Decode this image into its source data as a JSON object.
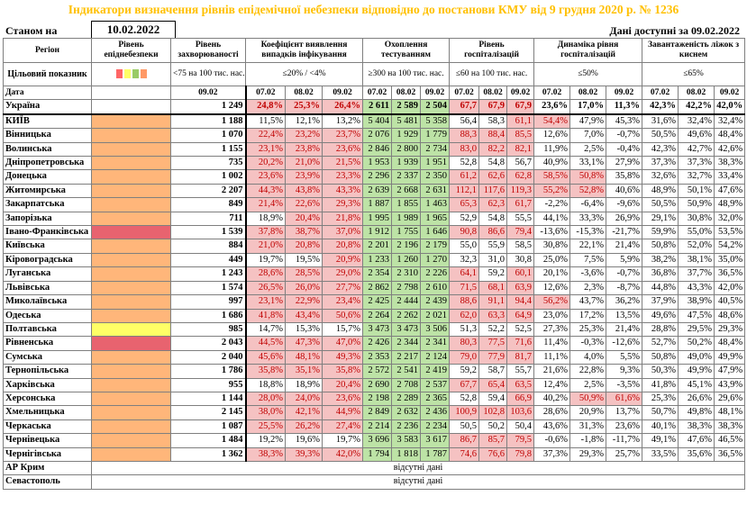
{
  "title": "Індикатори визначення рівнів епідемічної небезпеки відповідно до постанови КМУ від 9 грудня 2020 р. № 1236",
  "state_label": "Станом на",
  "state_date": "10.02.2022",
  "avail": "Дані доступні за  09.02.2022",
  "missing_text": "відсутні дані",
  "colors": {
    "orange": "#FFB67A",
    "red": "#E8636F",
    "yellow": "#FFFF66",
    "green": "#BDE3A6",
    "pink": "#F5C2C2",
    "title": "#FFC000"
  },
  "legend_squares": [
    "#FF6666",
    "#FFFF66",
    "#99CC66",
    "#FF9966"
  ],
  "headers": {
    "region": "Регіон",
    "indicator": "Цільовий показник",
    "date": "Дата",
    "level": "Рівень епіднебезпеки",
    "incidence": "Рівень захворюваності",
    "incidence_target": "<75 на 100 тис. нас.",
    "incidence_date": "09.02",
    "coef": "Коефіцієнт виявлення випадків інфікування",
    "coef_target": "≤20% / <4%",
    "tests": "Охоплення тестуванням",
    "tests_target": "≥300 на 100 тис. нас.",
    "hosp": "Рівень госпіталізацій",
    "hosp_target": "≤60 на 100 тис. нас.",
    "dyn": "Динаміка рівня госпіталізацій",
    "dyn_target": "≤50%",
    "beds": "Завантаженість ліжок з киснем",
    "beds_target": "≤65%",
    "dates": [
      "07.02",
      "08.02",
      "09.02"
    ]
  },
  "ukraine": {
    "name": "Україна",
    "inc": "1 249",
    "coef": [
      "24,8%",
      "25,3%",
      "26,4%"
    ],
    "tests": [
      "2 611",
      "2 589",
      "2 504"
    ],
    "hosp": [
      "67,7",
      "67,9",
      "67,9"
    ],
    "dyn": [
      "23,6%",
      "17,0%",
      "11,3%"
    ],
    "beds": [
      "42,3%",
      "42,2%",
      "42,0%"
    ]
  },
  "regions": [
    {
      "name": "КИЇВ",
      "level": "o",
      "inc": "1 188",
      "coef": [
        "11,5%",
        "12,1%",
        "13,2%"
      ],
      "tests": [
        "5 404",
        "5 481",
        "5 358"
      ],
      "hosp": [
        "56,4",
        "58,3",
        "61,1"
      ],
      "dyn": [
        "54,4%",
        "47,9%",
        "45,3%"
      ],
      "beds": [
        "31,6%",
        "32,4%",
        "32,4%"
      ]
    },
    {
      "name": "Вінницька",
      "level": "o",
      "inc": "1 070",
      "coef": [
        "22,4%",
        "23,2%",
        "23,7%"
      ],
      "tests": [
        "2 076",
        "1 929",
        "1 779"
      ],
      "hosp": [
        "88,3",
        "88,4",
        "85,5"
      ],
      "dyn": [
        "12,6%",
        "7,0%",
        "-0,7%"
      ],
      "beds": [
        "50,5%",
        "49,6%",
        "48,4%"
      ]
    },
    {
      "name": "Волинська",
      "level": "o",
      "inc": "1 155",
      "coef": [
        "23,1%",
        "23,8%",
        "23,6%"
      ],
      "tests": [
        "2 846",
        "2 800",
        "2 734"
      ],
      "hosp": [
        "83,0",
        "82,2",
        "82,1"
      ],
      "dyn": [
        "11,9%",
        "2,5%",
        "-0,4%"
      ],
      "beds": [
        "42,3%",
        "42,7%",
        "42,6%"
      ]
    },
    {
      "name": "Дніпропетровська",
      "level": "o",
      "inc": "735",
      "coef": [
        "20,2%",
        "21,0%",
        "21,5%"
      ],
      "tests": [
        "1 953",
        "1 939",
        "1 951"
      ],
      "hosp": [
        "52,8",
        "54,8",
        "56,7"
      ],
      "dyn": [
        "40,9%",
        "33,1%",
        "27,9%"
      ],
      "beds": [
        "37,3%",
        "37,3%",
        "38,3%"
      ]
    },
    {
      "name": "Донецька",
      "level": "o",
      "inc": "1 002",
      "coef": [
        "23,6%",
        "23,9%",
        "23,3%"
      ],
      "tests": [
        "2 296",
        "2 337",
        "2 350"
      ],
      "hosp": [
        "61,2",
        "62,6",
        "62,8"
      ],
      "dyn": [
        "58,5%",
        "50,8%",
        "35,8%"
      ],
      "beds": [
        "32,6%",
        "32,7%",
        "33,4%"
      ]
    },
    {
      "name": "Житомирська",
      "level": "o",
      "inc": "2 207",
      "coef": [
        "44,3%",
        "43,8%",
        "43,3%"
      ],
      "tests": [
        "2 639",
        "2 668",
        "2 631"
      ],
      "hosp": [
        "112,1",
        "117,6",
        "119,3"
      ],
      "dyn": [
        "55,2%",
        "52,8%",
        "40,6%"
      ],
      "beds": [
        "48,9%",
        "50,1%",
        "47,6%"
      ]
    },
    {
      "name": "Закарпатська",
      "level": "o",
      "inc": "849",
      "coef": [
        "21,4%",
        "22,6%",
        "29,3%"
      ],
      "tests": [
        "1 887",
        "1 855",
        "1 463"
      ],
      "hosp": [
        "65,3",
        "62,3",
        "61,7"
      ],
      "dyn": [
        "-2,2%",
        "-6,4%",
        "-9,6%"
      ],
      "beds": [
        "50,5%",
        "50,9%",
        "48,9%"
      ]
    },
    {
      "name": "Запорізька",
      "level": "o",
      "inc": "711",
      "coef": [
        "18,9%",
        "20,4%",
        "21,8%"
      ],
      "tests": [
        "1 995",
        "1 989",
        "1 965"
      ],
      "hosp": [
        "52,9",
        "54,8",
        "55,5"
      ],
      "dyn": [
        "44,1%",
        "33,3%",
        "26,9%"
      ],
      "beds": [
        "29,1%",
        "30,8%",
        "32,0%"
      ]
    },
    {
      "name": "Івано-Франківська",
      "level": "r",
      "inc": "1 539",
      "coef": [
        "37,8%",
        "38,7%",
        "37,0%"
      ],
      "tests": [
        "1 912",
        "1 755",
        "1 646"
      ],
      "hosp": [
        "90,8",
        "86,6",
        "79,4"
      ],
      "dyn": [
        "-13,6%",
        "-15,3%",
        "-21,7%"
      ],
      "beds": [
        "59,9%",
        "55,0%",
        "53,5%"
      ]
    },
    {
      "name": "Київська",
      "level": "o",
      "inc": "884",
      "coef": [
        "21,0%",
        "20,8%",
        "20,8%"
      ],
      "tests": [
        "2 201",
        "2 196",
        "2 179"
      ],
      "hosp": [
        "55,0",
        "55,9",
        "58,5"
      ],
      "dyn": [
        "30,8%",
        "22,1%",
        "21,4%"
      ],
      "beds": [
        "50,8%",
        "52,0%",
        "54,2%"
      ]
    },
    {
      "name": "Кіровоградська",
      "level": "o",
      "inc": "449",
      "coef": [
        "19,7%",
        "19,5%",
        "20,9%"
      ],
      "tests": [
        "1 233",
        "1 260",
        "1 270"
      ],
      "hosp": [
        "32,3",
        "31,0",
        "30,8"
      ],
      "dyn": [
        "25,0%",
        "7,5%",
        "5,9%"
      ],
      "beds": [
        "38,2%",
        "38,1%",
        "35,0%"
      ]
    },
    {
      "name": "Луганська",
      "level": "o",
      "inc": "1 243",
      "coef": [
        "28,6%",
        "28,5%",
        "29,0%"
      ],
      "tests": [
        "2 354",
        "2 310",
        "2 226"
      ],
      "hosp": [
        "64,1",
        "59,2",
        "60,1"
      ],
      "dyn": [
        "20,1%",
        "-3,6%",
        "-0,7%"
      ],
      "beds": [
        "36,8%",
        "37,7%",
        "36,5%"
      ]
    },
    {
      "name": "Львівська",
      "level": "o",
      "inc": "1 574",
      "coef": [
        "26,5%",
        "26,0%",
        "27,7%"
      ],
      "tests": [
        "2 862",
        "2 798",
        "2 610"
      ],
      "hosp": [
        "71,5",
        "68,1",
        "63,9"
      ],
      "dyn": [
        "12,6%",
        "2,3%",
        "-8,7%"
      ],
      "beds": [
        "44,8%",
        "43,3%",
        "42,0%"
      ]
    },
    {
      "name": "Миколаївська",
      "level": "o",
      "inc": "997",
      "coef": [
        "23,1%",
        "22,9%",
        "23,4%"
      ],
      "tests": [
        "2 425",
        "2 444",
        "2 439"
      ],
      "hosp": [
        "88,6",
        "91,1",
        "94,4"
      ],
      "dyn": [
        "56,2%",
        "43,7%",
        "36,2%"
      ],
      "beds": [
        "37,9%",
        "38,9%",
        "40,5%"
      ]
    },
    {
      "name": "Одеська",
      "level": "o",
      "inc": "1 686",
      "coef": [
        "41,8%",
        "43,4%",
        "50,6%"
      ],
      "tests": [
        "2 264",
        "2 262",
        "2 021"
      ],
      "hosp": [
        "62,0",
        "63,3",
        "64,9"
      ],
      "dyn": [
        "23,0%",
        "17,2%",
        "13,5%"
      ],
      "beds": [
        "49,6%",
        "47,5%",
        "48,6%"
      ]
    },
    {
      "name": "Полтавська",
      "level": "y",
      "inc": "985",
      "coef": [
        "14,7%",
        "15,3%",
        "15,7%"
      ],
      "tests": [
        "3 473",
        "3 473",
        "3 506"
      ],
      "hosp": [
        "51,3",
        "52,2",
        "52,5"
      ],
      "dyn": [
        "27,3%",
        "25,3%",
        "21,4%"
      ],
      "beds": [
        "28,8%",
        "29,5%",
        "29,3%"
      ]
    },
    {
      "name": "Рівненська",
      "level": "r",
      "inc": "2 043",
      "coef": [
        "44,5%",
        "47,3%",
        "47,0%"
      ],
      "tests": [
        "2 426",
        "2 344",
        "2 341"
      ],
      "hosp": [
        "80,3",
        "77,5",
        "71,6"
      ],
      "dyn": [
        "11,4%",
        "-0,3%",
        "-12,6%"
      ],
      "beds": [
        "52,7%",
        "50,2%",
        "48,4%"
      ]
    },
    {
      "name": "Сумська",
      "level": "o",
      "inc": "2 040",
      "coef": [
        "45,6%",
        "48,1%",
        "49,3%"
      ],
      "tests": [
        "2 353",
        "2 217",
        "2 124"
      ],
      "hosp": [
        "79,0",
        "77,9",
        "81,7"
      ],
      "dyn": [
        "11,1%",
        "4,0%",
        "5,5%"
      ],
      "beds": [
        "50,8%",
        "49,0%",
        "49,9%"
      ]
    },
    {
      "name": "Тернопільська",
      "level": "o",
      "inc": "1 786",
      "coef": [
        "35,8%",
        "35,1%",
        "35,8%"
      ],
      "tests": [
        "2 572",
        "2 541",
        "2 419"
      ],
      "hosp": [
        "59,2",
        "58,7",
        "55,7"
      ],
      "dyn": [
        "21,6%",
        "22,8%",
        "9,3%"
      ],
      "beds": [
        "50,3%",
        "49,9%",
        "47,9%"
      ]
    },
    {
      "name": "Харківська",
      "level": "o",
      "inc": "955",
      "coef": [
        "18,8%",
        "18,9%",
        "20,4%"
      ],
      "tests": [
        "2 690",
        "2 708",
        "2 537"
      ],
      "hosp": [
        "67,7",
        "65,4",
        "63,5"
      ],
      "dyn": [
        "12,4%",
        "2,5%",
        "-3,5%"
      ],
      "beds": [
        "41,8%",
        "45,1%",
        "43,9%"
      ]
    },
    {
      "name": "Херсонська",
      "level": "o",
      "inc": "1 144",
      "coef": [
        "28,0%",
        "24,0%",
        "23,6%"
      ],
      "tests": [
        "2 198",
        "2 289",
        "2 365"
      ],
      "hosp": [
        "52,8",
        "59,4",
        "66,9"
      ],
      "dyn": [
        "40,2%",
        "50,9%",
        "61,6%"
      ],
      "beds": [
        "25,3%",
        "26,6%",
        "29,6%"
      ]
    },
    {
      "name": "Хмельницька",
      "level": "o",
      "inc": "2 145",
      "coef": [
        "38,0%",
        "42,1%",
        "44,9%"
      ],
      "tests": [
        "2 849",
        "2 632",
        "2 436"
      ],
      "hosp": [
        "100,9",
        "102,8",
        "103,6"
      ],
      "dyn": [
        "28,6%",
        "20,9%",
        "13,7%"
      ],
      "beds": [
        "50,7%",
        "49,8%",
        "48,1%"
      ]
    },
    {
      "name": "Черкаська",
      "level": "o",
      "inc": "1 087",
      "coef": [
        "25,5%",
        "26,2%",
        "27,4%"
      ],
      "tests": [
        "2 214",
        "2 236",
        "2 234"
      ],
      "hosp": [
        "50,5",
        "50,2",
        "50,4"
      ],
      "dyn": [
        "43,6%",
        "31,3%",
        "23,6%"
      ],
      "beds": [
        "40,1%",
        "38,3%",
        "38,3%"
      ]
    },
    {
      "name": "Чернівецька",
      "level": "o",
      "inc": "1 484",
      "coef": [
        "19,2%",
        "19,6%",
        "19,7%"
      ],
      "tests": [
        "3 696",
        "3 583",
        "3 617"
      ],
      "hosp": [
        "86,7",
        "85,7",
        "79,5"
      ],
      "dyn": [
        "-0,6%",
        "-1,8%",
        "-11,7%"
      ],
      "beds": [
        "49,1%",
        "47,6%",
        "46,5%"
      ]
    },
    {
      "name": "Чернігівська",
      "level": "o",
      "inc": "1 362",
      "coef": [
        "38,3%",
        "39,3%",
        "42,0%"
      ],
      "tests": [
        "1 794",
        "1 818",
        "1 787"
      ],
      "hosp": [
        "74,6",
        "76,6",
        "79,8"
      ],
      "dyn": [
        "37,3%",
        "29,3%",
        "25,7%"
      ],
      "beds": [
        "33,5%",
        "35,6%",
        "36,5%"
      ]
    }
  ],
  "missing_regions": [
    "АР Крим",
    "Севастополь"
  ]
}
